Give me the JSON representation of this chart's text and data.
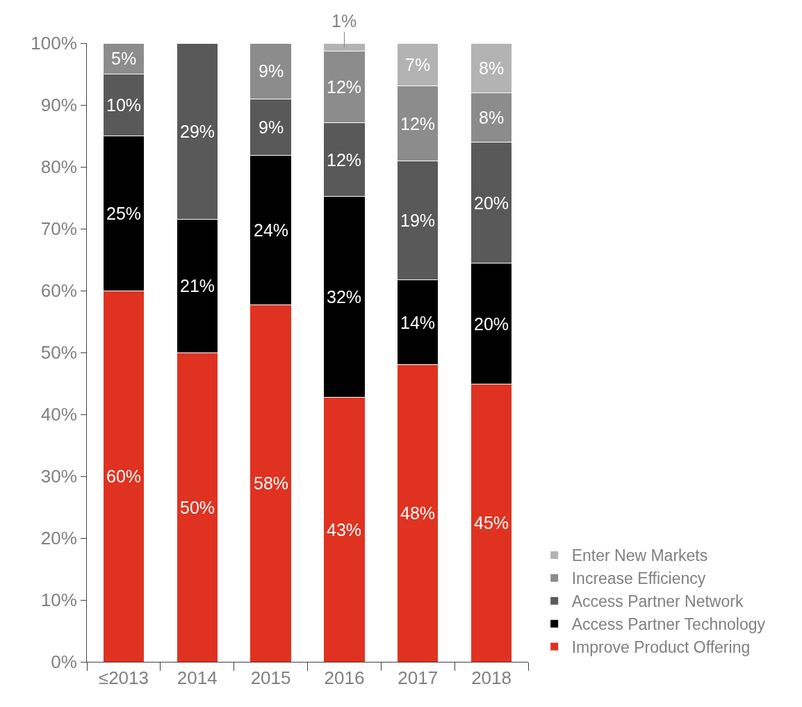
{
  "chart_data": {
    "type": "bar",
    "stacked": true,
    "categories": [
      "≤2013",
      "2014",
      "2015",
      "2016",
      "2017",
      "2018"
    ],
    "series": [
      {
        "name": "Improve Product Offering",
        "color": "#e03220",
        "values": [
          60,
          50,
          57.7,
          42.8,
          48,
          44.9
        ],
        "value_labels": [
          "60%",
          "50%",
          "58%",
          "43%",
          "48%",
          "45%"
        ]
      },
      {
        "name": "Access Partner Technology",
        "color": "#000000",
        "values": [
          25,
          21.5,
          24.1,
          32.4,
          13.7,
          19.5
        ],
        "value_labels": [
          "25%",
          "21%",
          "24%",
          "32%",
          "14%",
          "20%"
        ]
      },
      {
        "name": "Access Partner Network",
        "color": "#595959",
        "values": [
          10,
          28.5,
          9.1,
          11.9,
          19.2,
          19.6
        ],
        "value_labels": [
          "10%",
          "29%",
          "9%",
          "12%",
          "19%",
          "20%"
        ]
      },
      {
        "name": "Increase Efficiency",
        "color": "#8c8c8c",
        "values": [
          5,
          null,
          9.1,
          11.6,
          12.2,
          8
        ],
        "value_labels": [
          "5%",
          null,
          "9%",
          "12%",
          "12%",
          "8%"
        ]
      },
      {
        "name": "Enter New Markets",
        "color": "#b3b3b3",
        "values": [
          null,
          null,
          null,
          1.3,
          6.9,
          8
        ],
        "value_labels": [
          null,
          null,
          null,
          "1%",
          "7%",
          "8%"
        ]
      }
    ],
    "ylim": [
      0,
      100
    ],
    "yticks": [
      {
        "value": 0,
        "label": "0%"
      },
      {
        "value": 10,
        "label": "10%"
      },
      {
        "value": 20,
        "label": "20%"
      },
      {
        "value": 30,
        "label": "30%"
      },
      {
        "value": 40,
        "label": "40%"
      },
      {
        "value": 50,
        "label": "50%"
      },
      {
        "value": 60,
        "label": "60%"
      },
      {
        "value": 70,
        "label": "70%"
      },
      {
        "value": 80,
        "label": "80%"
      },
      {
        "value": 90,
        "label": "90%"
      },
      {
        "value": 100,
        "label": "100%"
      }
    ],
    "legend": "bottom right"
  }
}
